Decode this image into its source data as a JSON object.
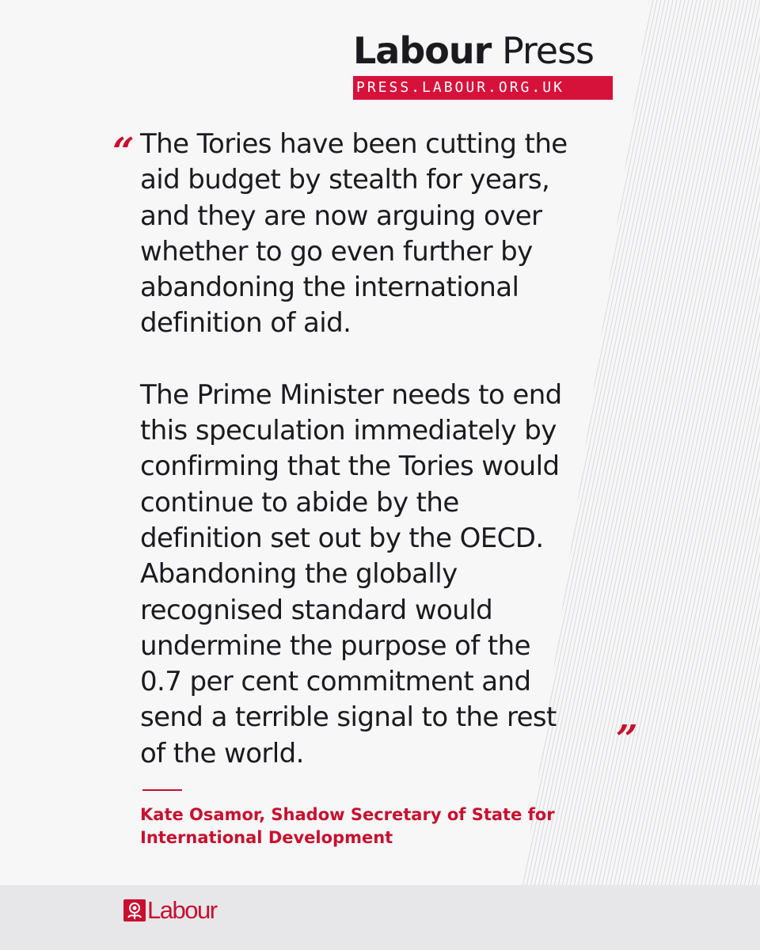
{
  "masthead": {
    "title_bold": "Labour",
    "title_light": " Press",
    "url": "PRESS.LABOUR.ORG.UK"
  },
  "quote": {
    "open_mark": "“",
    "close_mark": "”",
    "paragraph_1": "The Tories have been cutting the\naid budget by stealth for years,\nand they are now arguing over\nwhether to go even further by\nabandoning the international\ndefinition of aid.",
    "paragraph_2": "The Prime Minister needs to end\nthis speculation immediately by\nconfirming that the Tories would\ncontinue to abide by the\ndefinition set out by the OECD.\nAbandoning the globally\nrecognised standard would\nundermine the purpose of the\n0.7 per cent commitment and\nsend a terrible signal to the rest\nof the world."
  },
  "attribution": {
    "text": "Kate Osamor, Shadow Secretary of State for\nInternational Development"
  },
  "footer": {
    "logo_text": "Labour"
  },
  "colors": {
    "accent": "#c8102e",
    "text": "#1b1b1f",
    "background": "#f7f7f8",
    "footer_bg": "#e7e7ea"
  },
  "icons": {
    "footer_logo": "rose-icon"
  }
}
